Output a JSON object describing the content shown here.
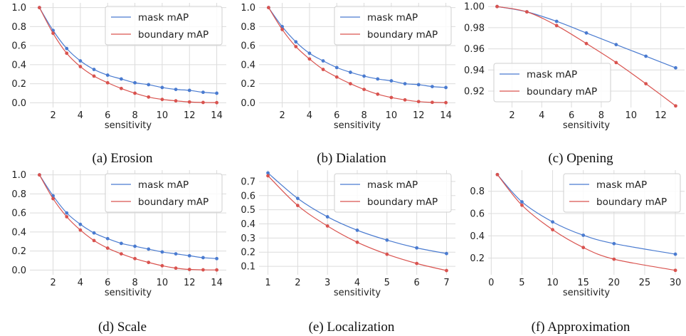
{
  "colors": {
    "mask": "#4a7bd0",
    "boundary": "#d9534f",
    "grid": "#dcdcdc",
    "panel_bg": "#ffffff"
  },
  "chart_data": [
    {
      "type": "line",
      "caption": "(a) Erosion",
      "xlabel": "sensitivity",
      "ylabel": "",
      "xlim": [
        0.3,
        14.7
      ],
      "ylim": [
        -0.05,
        1.05
      ],
      "xticks": [
        2,
        4,
        6,
        8,
        10,
        12,
        14
      ],
      "yticks": [
        0.0,
        0.2,
        0.4,
        0.6,
        0.8,
        1.0
      ],
      "ytick_decimals": 1,
      "grid": true,
      "legend": "upper-right",
      "series": [
        {
          "name": "mask mAP",
          "x": [
            1,
            2,
            3,
            4,
            5,
            6,
            7,
            8,
            9,
            10,
            11,
            12,
            13,
            14
          ],
          "y": [
            1.0,
            0.76,
            0.57,
            0.44,
            0.35,
            0.29,
            0.25,
            0.21,
            0.19,
            0.16,
            0.14,
            0.13,
            0.11,
            0.1
          ]
        },
        {
          "name": "boundary mAP",
          "x": [
            1,
            2,
            3,
            4,
            5,
            6,
            7,
            8,
            9,
            10,
            11,
            12,
            13,
            14
          ],
          "y": [
            1.0,
            0.73,
            0.52,
            0.38,
            0.28,
            0.21,
            0.15,
            0.1,
            0.06,
            0.035,
            0.02,
            0.008,
            0.003,
            0.001
          ]
        }
      ]
    },
    {
      "type": "line",
      "caption": "(b) Dialation",
      "xlabel": "sensitivity",
      "ylabel": "",
      "xlim": [
        0.3,
        14.7
      ],
      "ylim": [
        -0.05,
        1.05
      ],
      "xticks": [
        2,
        4,
        6,
        8,
        10,
        12,
        14
      ],
      "yticks": [
        0.0,
        0.2,
        0.4,
        0.6,
        0.8,
        1.0
      ],
      "ytick_decimals": 1,
      "grid": true,
      "legend": "upper-right",
      "series": [
        {
          "name": "mask mAP",
          "x": [
            1,
            2,
            3,
            4,
            5,
            6,
            7,
            8,
            9,
            10,
            11,
            12,
            13,
            14
          ],
          "y": [
            1.0,
            0.8,
            0.64,
            0.52,
            0.44,
            0.37,
            0.32,
            0.28,
            0.25,
            0.23,
            0.2,
            0.19,
            0.17,
            0.16
          ]
        },
        {
          "name": "boundary mAP",
          "x": [
            1,
            2,
            3,
            4,
            5,
            6,
            7,
            8,
            9,
            10,
            11,
            12,
            13,
            14
          ],
          "y": [
            1.0,
            0.77,
            0.59,
            0.46,
            0.35,
            0.27,
            0.2,
            0.14,
            0.09,
            0.055,
            0.03,
            0.012,
            0.004,
            0.001
          ]
        }
      ]
    },
    {
      "type": "line",
      "caption": "(c) Opening",
      "xlabel": "sensitivity",
      "ylabel": "",
      "xlim": [
        0.4,
        13.6
      ],
      "ylim": [
        0.9045,
        1.0035
      ],
      "xticks": [
        2,
        4,
        6,
        8,
        10,
        12
      ],
      "yticks": [
        0.92,
        0.94,
        0.96,
        0.98,
        1.0
      ],
      "ytick_decimals": 2,
      "grid": true,
      "legend": "lower-left",
      "series": [
        {
          "name": "mask mAP",
          "x": [
            1,
            3,
            5,
            7,
            9,
            11,
            13
          ],
          "y": [
            1.0,
            0.995,
            0.986,
            0.975,
            0.964,
            0.953,
            0.942
          ]
        },
        {
          "name": "boundary mAP",
          "x": [
            1,
            3,
            5,
            7,
            9,
            11,
            13
          ],
          "y": [
            1.0,
            0.995,
            0.982,
            0.965,
            0.947,
            0.927,
            0.906
          ]
        }
      ]
    },
    {
      "type": "line",
      "caption": "(d) Scale",
      "xlabel": "sensitivity",
      "ylabel": "",
      "xlim": [
        0.3,
        14.7
      ],
      "ylim": [
        -0.05,
        1.05
      ],
      "xticks": [
        2,
        4,
        6,
        8,
        10,
        12,
        14
      ],
      "yticks": [
        0.0,
        0.2,
        0.4,
        0.6,
        0.8,
        1.0
      ],
      "ytick_decimals": 1,
      "grid": true,
      "legend": "upper-right",
      "series": [
        {
          "name": "mask mAP",
          "x": [
            1,
            2,
            3,
            4,
            5,
            6,
            7,
            8,
            9,
            10,
            11,
            12,
            13,
            14
          ],
          "y": [
            1.0,
            0.78,
            0.6,
            0.48,
            0.39,
            0.33,
            0.28,
            0.25,
            0.22,
            0.19,
            0.17,
            0.15,
            0.13,
            0.12
          ]
        },
        {
          "name": "boundary mAP",
          "x": [
            1,
            2,
            3,
            4,
            5,
            6,
            7,
            8,
            9,
            10,
            11,
            12,
            13,
            14
          ],
          "y": [
            1.0,
            0.75,
            0.56,
            0.42,
            0.31,
            0.23,
            0.17,
            0.12,
            0.08,
            0.045,
            0.02,
            0.006,
            0.002,
            0.001
          ]
        }
      ]
    },
    {
      "type": "line",
      "caption": "(e) Localization",
      "xlabel": "sensitivity",
      "ylabel": "",
      "xlim": [
        0.7,
        7.3
      ],
      "ylim": [
        0.04,
        0.78
      ],
      "xticks": [
        1,
        2,
        3,
        4,
        5,
        6,
        7
      ],
      "yticks": [
        0.1,
        0.2,
        0.3,
        0.4,
        0.5,
        0.6,
        0.7
      ],
      "ytick_decimals": 1,
      "grid": true,
      "legend": "upper-right",
      "series": [
        {
          "name": "mask mAP",
          "x": [
            1,
            2,
            3,
            4,
            5,
            6,
            7
          ],
          "y": [
            0.76,
            0.58,
            0.45,
            0.355,
            0.285,
            0.23,
            0.19
          ]
        },
        {
          "name": "boundary mAP",
          "x": [
            1,
            2,
            3,
            4,
            5,
            6,
            7
          ],
          "y": [
            0.74,
            0.53,
            0.385,
            0.27,
            0.185,
            0.12,
            0.07
          ]
        }
      ]
    },
    {
      "type": "line",
      "caption": "(f) Approximation",
      "xlabel": "sensitivity",
      "ylabel": "",
      "xlim": [
        -0.5,
        31.5
      ],
      "ylim": [
        0.05,
        0.99
      ],
      "xticks": [
        0,
        5,
        10,
        15,
        20,
        25,
        30
      ],
      "yticks": [
        0.2,
        0.4,
        0.6,
        0.8
      ],
      "ytick_decimals": 1,
      "grid": true,
      "legend": "upper-right",
      "series": [
        {
          "name": "mask mAP",
          "x": [
            1,
            5,
            10,
            15,
            20,
            30
          ],
          "y": [
            0.95,
            0.705,
            0.525,
            0.405,
            0.33,
            0.235
          ]
        },
        {
          "name": "boundary mAP",
          "x": [
            1,
            5,
            10,
            15,
            20,
            30
          ],
          "y": [
            0.95,
            0.675,
            0.455,
            0.295,
            0.19,
            0.09
          ]
        }
      ]
    }
  ]
}
